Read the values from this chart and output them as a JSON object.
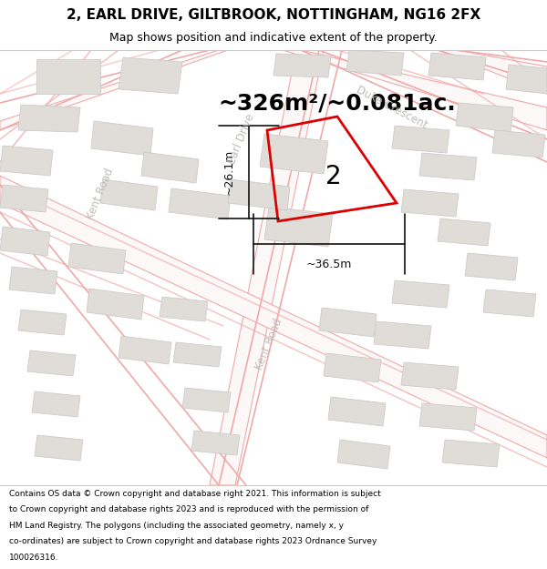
{
  "title": "2, EARL DRIVE, GILTBROOK, NOTTINGHAM, NG16 2FX",
  "subtitle": "Map shows position and indicative extent of the property.",
  "area_text": "~326m²/~0.081ac.",
  "property_number": "2",
  "dim_width": "~36.5m",
  "dim_height": "~26.1m",
  "footer_lines": [
    "Contains OS data © Crown copyright and database right 2021. This information is subject",
    "to Crown copyright and database rights 2023 and is reproduced with the permission of",
    "HM Land Registry. The polygons (including the associated geometry, namely x, y",
    "co-ordinates) are subject to Crown copyright and database rights 2023 Ordnance Survey",
    "100026316."
  ],
  "map_bg": "#f8f7f5",
  "road_outline_color": "#f0a8a8",
  "road_fill_color": "#faf5f5",
  "building_fill": "#e0ddd8",
  "building_edge": "#cccccc",
  "property_edge": "#dd0000",
  "dim_color": "#111111",
  "road_label_color": "#c0bcb8",
  "title_fontsize": 11,
  "subtitle_fontsize": 9,
  "area_fontsize": 18,
  "label_fontsize": 20,
  "road_label_fontsize": 8.5,
  "footer_fontsize": 6.5
}
